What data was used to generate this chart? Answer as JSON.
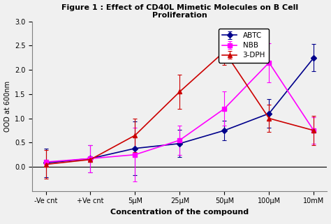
{
  "title": "Figure 1 : Effect of CD40L Mimetic Molecules on B Cell\nProliferation",
  "xlabel": "Concentration of the compound",
  "ylabel": "OOD at 600nm",
  "categories": [
    "-Ve cnt",
    "+Ve cnt",
    "5μM",
    "25μM",
    "50μM",
    "100μM",
    "10mM"
  ],
  "abtc_values": [
    0.08,
    0.17,
    0.38,
    0.48,
    0.75,
    1.1,
    2.25
  ],
  "abtc_errors": [
    0.3,
    0.28,
    0.55,
    0.28,
    0.2,
    0.3,
    0.28
  ],
  "nbb_values": [
    0.1,
    0.17,
    0.25,
    0.55,
    1.2,
    2.15,
    0.75
  ],
  "nbb_errors": [
    0.05,
    0.28,
    0.55,
    0.3,
    0.35,
    0.4,
    0.28
  ],
  "dph_values": [
    0.05,
    0.15,
    0.65,
    1.55,
    2.38,
    1.0,
    0.75
  ],
  "dph_errors": [
    0.3,
    0.05,
    0.35,
    0.35,
    0.28,
    0.28,
    0.3
  ],
  "abtc_color": "#00008B",
  "nbb_color": "#FF00FF",
  "dph_color": "#CC0000",
  "ylim": [
    -0.5,
    3.0
  ],
  "yticks": [
    0.0,
    0.5,
    1.0,
    1.5,
    2.0,
    2.5,
    3.0
  ],
  "legend_labels": [
    "ABTC",
    "NBB",
    "3-DPH"
  ],
  "figsize": [
    4.74,
    3.21
  ],
  "dpi": 100
}
